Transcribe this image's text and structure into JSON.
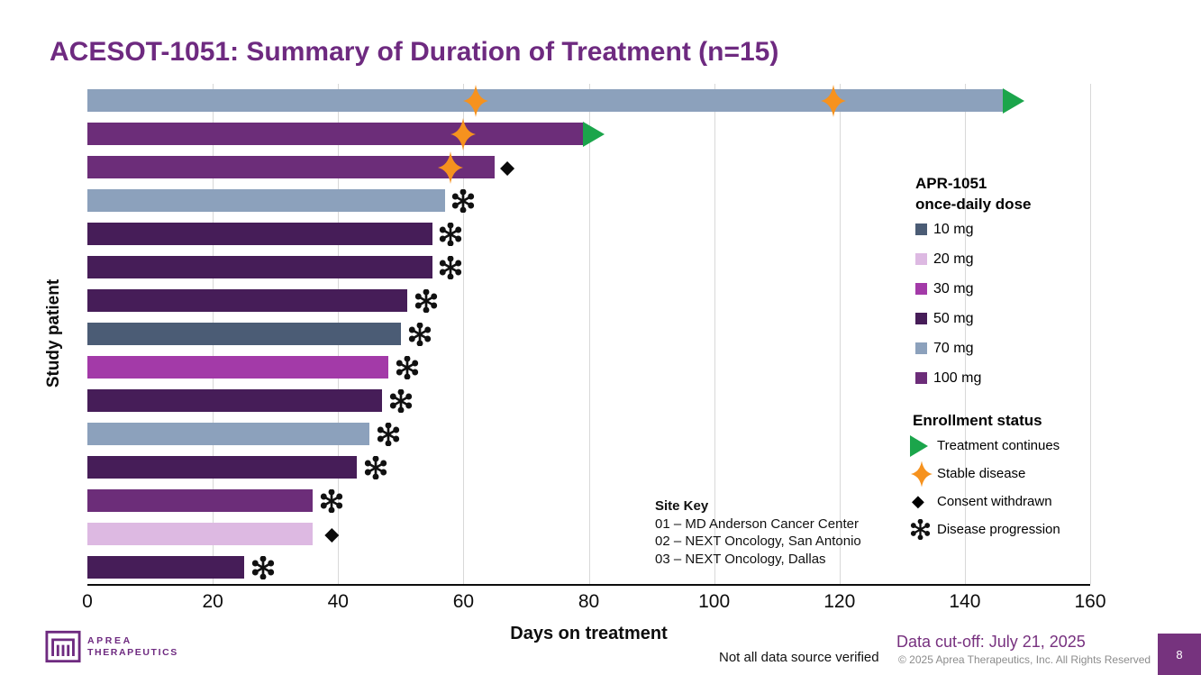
{
  "slide": {
    "title": "ACESOT-1051: Summary of Duration of Treatment (n=15)",
    "title_color": "#6e2a80",
    "page_number": "8"
  },
  "axis": {
    "xlabel": "Days on treatment",
    "ylabel": "Study patient"
  },
  "dose_legend": {
    "title_line1": "APR-1051",
    "title_line2": "once-daily dose",
    "items": [
      {
        "label": "10 mg",
        "color": "#4b5c75"
      },
      {
        "label": "20 mg",
        "color": "#ddb9e2"
      },
      {
        "label": "30 mg",
        "color": "#a33aa8"
      },
      {
        "label": "50 mg",
        "color": "#461d58"
      },
      {
        "label": "70 mg",
        "color": "#8ca1bc"
      },
      {
        "label": "100 mg",
        "color": "#6c2d79"
      }
    ]
  },
  "status_legend": {
    "title": "Enrollment status",
    "arrow_color": "#1ba54b",
    "star_color": "#f6921e",
    "items": [
      {
        "icon": "treatment-continues-arrow",
        "label": "Treatment continues"
      },
      {
        "icon": "stable-disease-star",
        "label": "Stable disease"
      },
      {
        "icon": "consent-withdrawn-diamond",
        "label": "Consent withdrawn"
      },
      {
        "icon": "disease-progression-asterisk",
        "label": "Disease progression"
      }
    ]
  },
  "site_key": {
    "title": "Site Key",
    "lines": [
      "01 – MD Anderson Cancer Center",
      "02 – NEXT Oncology, San Antonio",
      "03 – NEXT Oncology, Dallas"
    ]
  },
  "footer": {
    "logo_line1": "APREA",
    "logo_line2": "THERAPEUTICS",
    "note": "Not all data source verified",
    "data_cutoff": "Data cut-off: July 21, 2025",
    "copyright": "© 2025 Aprea Therapeutics, Inc. All Rights Reserved"
  },
  "chart_data": {
    "type": "bar",
    "orientation": "horizontal",
    "title": "ACESOT-1051: Summary of Duration of Treatment (n=15)",
    "xlabel": "Days on treatment",
    "ylabel": "Study patient",
    "xlim": [
      0,
      160
    ],
    "xticks": [
      0,
      20,
      40,
      60,
      80,
      100,
      120,
      140,
      160
    ],
    "grid": "vertical",
    "dose_colors": {
      "10 mg": "#4b5c75",
      "20 mg": "#ddb9e2",
      "30 mg": "#a33aa8",
      "50 mg": "#461d58",
      "70 mg": "#8ca1bc",
      "100 mg": "#6c2d79"
    },
    "bars": [
      {
        "dose": "70 mg",
        "days": 146,
        "markers": [
          {
            "type": "stable-disease",
            "day": 62
          },
          {
            "type": "stable-disease",
            "day": 119
          },
          {
            "type": "treatment-continues",
            "day": 146
          }
        ]
      },
      {
        "dose": "100 mg",
        "days": 79,
        "markers": [
          {
            "type": "stable-disease",
            "day": 60
          },
          {
            "type": "treatment-continues",
            "day": 79
          }
        ]
      },
      {
        "dose": "100 mg",
        "days": 65,
        "markers": [
          {
            "type": "stable-disease",
            "day": 58
          },
          {
            "type": "consent-withdrawn",
            "day": 67
          }
        ]
      },
      {
        "dose": "70 mg",
        "days": 57,
        "markers": [
          {
            "type": "disease-progression",
            "day": 60
          }
        ]
      },
      {
        "dose": "50 mg",
        "days": 55,
        "markers": [
          {
            "type": "disease-progression",
            "day": 58
          }
        ]
      },
      {
        "dose": "50 mg",
        "days": 55,
        "markers": [
          {
            "type": "disease-progression",
            "day": 58
          }
        ]
      },
      {
        "dose": "50 mg",
        "days": 51,
        "markers": [
          {
            "type": "disease-progression",
            "day": 54
          }
        ]
      },
      {
        "dose": "10 mg",
        "days": 50,
        "markers": [
          {
            "type": "disease-progression",
            "day": 53
          }
        ]
      },
      {
        "dose": "30 mg",
        "days": 48,
        "markers": [
          {
            "type": "disease-progression",
            "day": 51
          }
        ]
      },
      {
        "dose": "50 mg",
        "days": 47,
        "markers": [
          {
            "type": "disease-progression",
            "day": 50
          }
        ]
      },
      {
        "dose": "70 mg",
        "days": 45,
        "markers": [
          {
            "type": "disease-progression",
            "day": 48
          }
        ]
      },
      {
        "dose": "50 mg",
        "days": 43,
        "markers": [
          {
            "type": "disease-progression",
            "day": 46
          }
        ]
      },
      {
        "dose": "100 mg",
        "days": 36,
        "markers": [
          {
            "type": "disease-progression",
            "day": 39
          }
        ]
      },
      {
        "dose": "20 mg",
        "days": 36,
        "markers": [
          {
            "type": "consent-withdrawn",
            "day": 39
          }
        ]
      },
      {
        "dose": "50 mg",
        "days": 25,
        "markers": [
          {
            "type": "disease-progression",
            "day": 28
          }
        ]
      }
    ]
  }
}
